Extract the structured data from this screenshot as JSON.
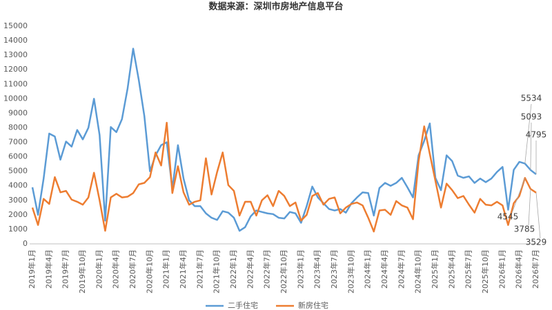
{
  "chart_data": {
    "type": "line",
    "title": "数据来源：深圳市房地产信息平台",
    "categories": [
      "2019年1月",
      null,
      null,
      "2019年4月",
      null,
      null,
      "2019年7月",
      null,
      null,
      "2019年10月",
      null,
      null,
      "2020年1月",
      null,
      null,
      "2020年4月",
      null,
      null,
      "2020年7月",
      null,
      null,
      "2020年10月",
      null,
      null,
      "2021年1月",
      null,
      null,
      "2021年4月",
      null,
      null,
      "2021年7月",
      null,
      null,
      "2021年10月",
      null,
      null,
      "2022年1月",
      null,
      null,
      "2022年4月",
      null,
      null,
      "2022年7月",
      null,
      null,
      "2022年10月",
      null,
      null,
      "2023年1月",
      null,
      null,
      "2023年4月",
      null,
      null,
      "2023年7月",
      null,
      null,
      "2023年10月",
      null,
      null,
      "2024年1月",
      null,
      null,
      "2024年4月",
      null,
      null,
      "2024年7月",
      null,
      null,
      "2024年10月",
      null,
      null,
      "2025年1月",
      null,
      null,
      "2025年4月",
      null,
      null,
      "2025年7月",
      null,
      null,
      "2025年10月",
      null,
      null,
      "2026年1月",
      null,
      null,
      "2026年4月",
      null,
      null,
      "2026年7月"
    ],
    "series": [
      {
        "name": "二手住宅",
        "color": "#5b9bd5",
        "values": [
          3900,
          2000,
          4500,
          7600,
          7400,
          5800,
          7050,
          6700,
          7850,
          7200,
          8000,
          10000,
          7500,
          1600,
          8050,
          7700,
          8600,
          10700,
          13450,
          11300,
          8800,
          5000,
          6100,
          6800,
          7000,
          3800,
          6800,
          4500,
          3000,
          2600,
          2600,
          2100,
          1800,
          1650,
          2250,
          2150,
          1800,
          900,
          1150,
          1900,
          2300,
          2200,
          2100,
          2050,
          1800,
          1750,
          2200,
          2100,
          1450,
          2600,
          3950,
          3200,
          2800,
          2400,
          2300,
          2400,
          2150,
          2800,
          3200,
          3550,
          3500,
          1950,
          3850,
          4200,
          4000,
          4200,
          4550,
          3900,
          3200,
          6100,
          7100,
          8300,
          4550,
          3700,
          6100,
          5700,
          4700,
          4550,
          4650,
          4200,
          4500,
          4250,
          4500,
          4950,
          5300,
          2350,
          5100,
          5650,
          5534,
          5093,
          4795
        ]
      },
      {
        "name": "新房住宅",
        "color": "#ed7d31",
        "values": [
          2500,
          1300,
          3100,
          2750,
          4600,
          3550,
          3650,
          3050,
          2900,
          2700,
          3200,
          4900,
          3000,
          900,
          3200,
          3450,
          3200,
          3250,
          3500,
          4100,
          4200,
          4600,
          6300,
          5400,
          8350,
          3500,
          5350,
          3550,
          2700,
          2900,
          3000,
          5900,
          3400,
          4950,
          6300,
          4050,
          3650,
          1950,
          2900,
          2900,
          1950,
          3000,
          3350,
          2600,
          3650,
          3300,
          2600,
          2850,
          1600,
          2000,
          3300,
          3500,
          2700,
          3100,
          3200,
          2100,
          2500,
          2750,
          2850,
          2650,
          1800,
          850,
          2300,
          2350,
          2000,
          2950,
          2650,
          2500,
          1700,
          5700,
          8100,
          6200,
          4350,
          2500,
          4150,
          3700,
          3150,
          3300,
          2700,
          2150,
          3100,
          2700,
          2650,
          2900,
          2650,
          1300,
          2800,
          3300,
          4545,
          3785,
          3529
        ]
      }
    ],
    "ylim": [
      0,
      15000
    ],
    "yticks": [
      0,
      1000,
      2000,
      3000,
      4000,
      5000,
      6000,
      7000,
      8000,
      9000,
      10000,
      11000,
      12000,
      13000,
      14000,
      15000
    ],
    "grid": false
  }
}
